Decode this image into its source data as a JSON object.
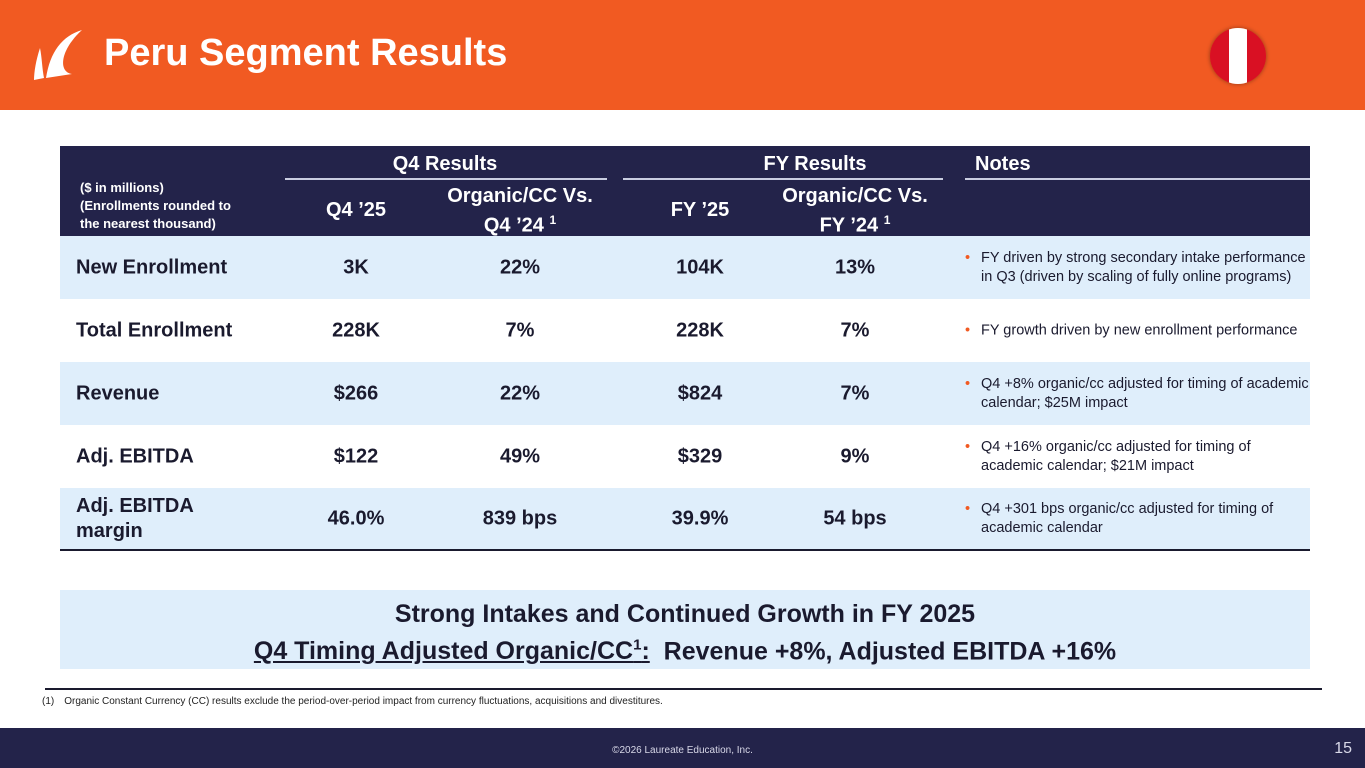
{
  "header": {
    "title": "Peru Segment Results",
    "colors": {
      "header": "#F15A22",
      "table_header": "#23234a",
      "row_band": "#dfeefb"
    },
    "logo": "laureate-leaf-logo",
    "flag": "peru-flag-icon"
  },
  "table": {
    "groups": {
      "q4": "Q4 Results",
      "fy": "FY Results",
      "notes": "Notes"
    },
    "unit_note": [
      "($ in millions)",
      "(Enrollments rounded to",
      "the nearest thousand)"
    ],
    "columns": {
      "q4": "Q4 ’25",
      "q4_org_1": "Organic/CC Vs.",
      "q4_org_2": "Q4 ’24",
      "fy": "FY ’25",
      "fy_org_1": "Organic/CC Vs.",
      "fy_org_2": "FY ’24",
      "sup": "1"
    },
    "rows": [
      {
        "label": "New Enrollment",
        "q4": "3K",
        "q4_org": "22%",
        "fy": "104K",
        "fy_org": "13%",
        "note": "FY driven by strong secondary intake performance in Q3 (driven by scaling of fully online programs)"
      },
      {
        "label": "Total Enrollment",
        "q4": "228K",
        "q4_org": "7%",
        "fy": "228K",
        "fy_org": "7%",
        "note": "FY growth driven by new enrollment performance"
      },
      {
        "label": "Revenue",
        "q4": "$266",
        "q4_org": "22%",
        "fy": "$824",
        "fy_org": "7%",
        "note": "Q4 +8% organic/cc adjusted for timing of academic calendar; $25M impact"
      },
      {
        "label": "Adj. EBITDA",
        "q4": "$122",
        "q4_org": "49%",
        "fy": "$329",
        "fy_org": "9%",
        "note": "Q4 +16% organic/cc adjusted for timing of academic calendar; $21M impact"
      },
      {
        "label": "Adj. EBITDA margin",
        "q4": "46.0%",
        "q4_org": "839 bps",
        "fy": "39.9%",
        "fy_org": "54 bps",
        "note": "Q4 +301 bps organic/cc adjusted for timing of academic calendar"
      }
    ]
  },
  "banner": {
    "line1": "Strong Intakes and Continued Growth in FY 2025",
    "line2_underlined": "Q4 Timing Adjusted Organic/CC",
    "sup": "1",
    "colon": ":",
    "line2_rest": "  Revenue +8%, Adjusted EBITDA +16%"
  },
  "footnote": {
    "marker": "(1)",
    "text": "Organic Constant Currency (CC) results exclude the period-over-period impact from currency fluctuations, acquisitions and divestitures."
  },
  "footer": {
    "copyright": "©2026 Laureate Education, Inc.",
    "page": "15"
  }
}
